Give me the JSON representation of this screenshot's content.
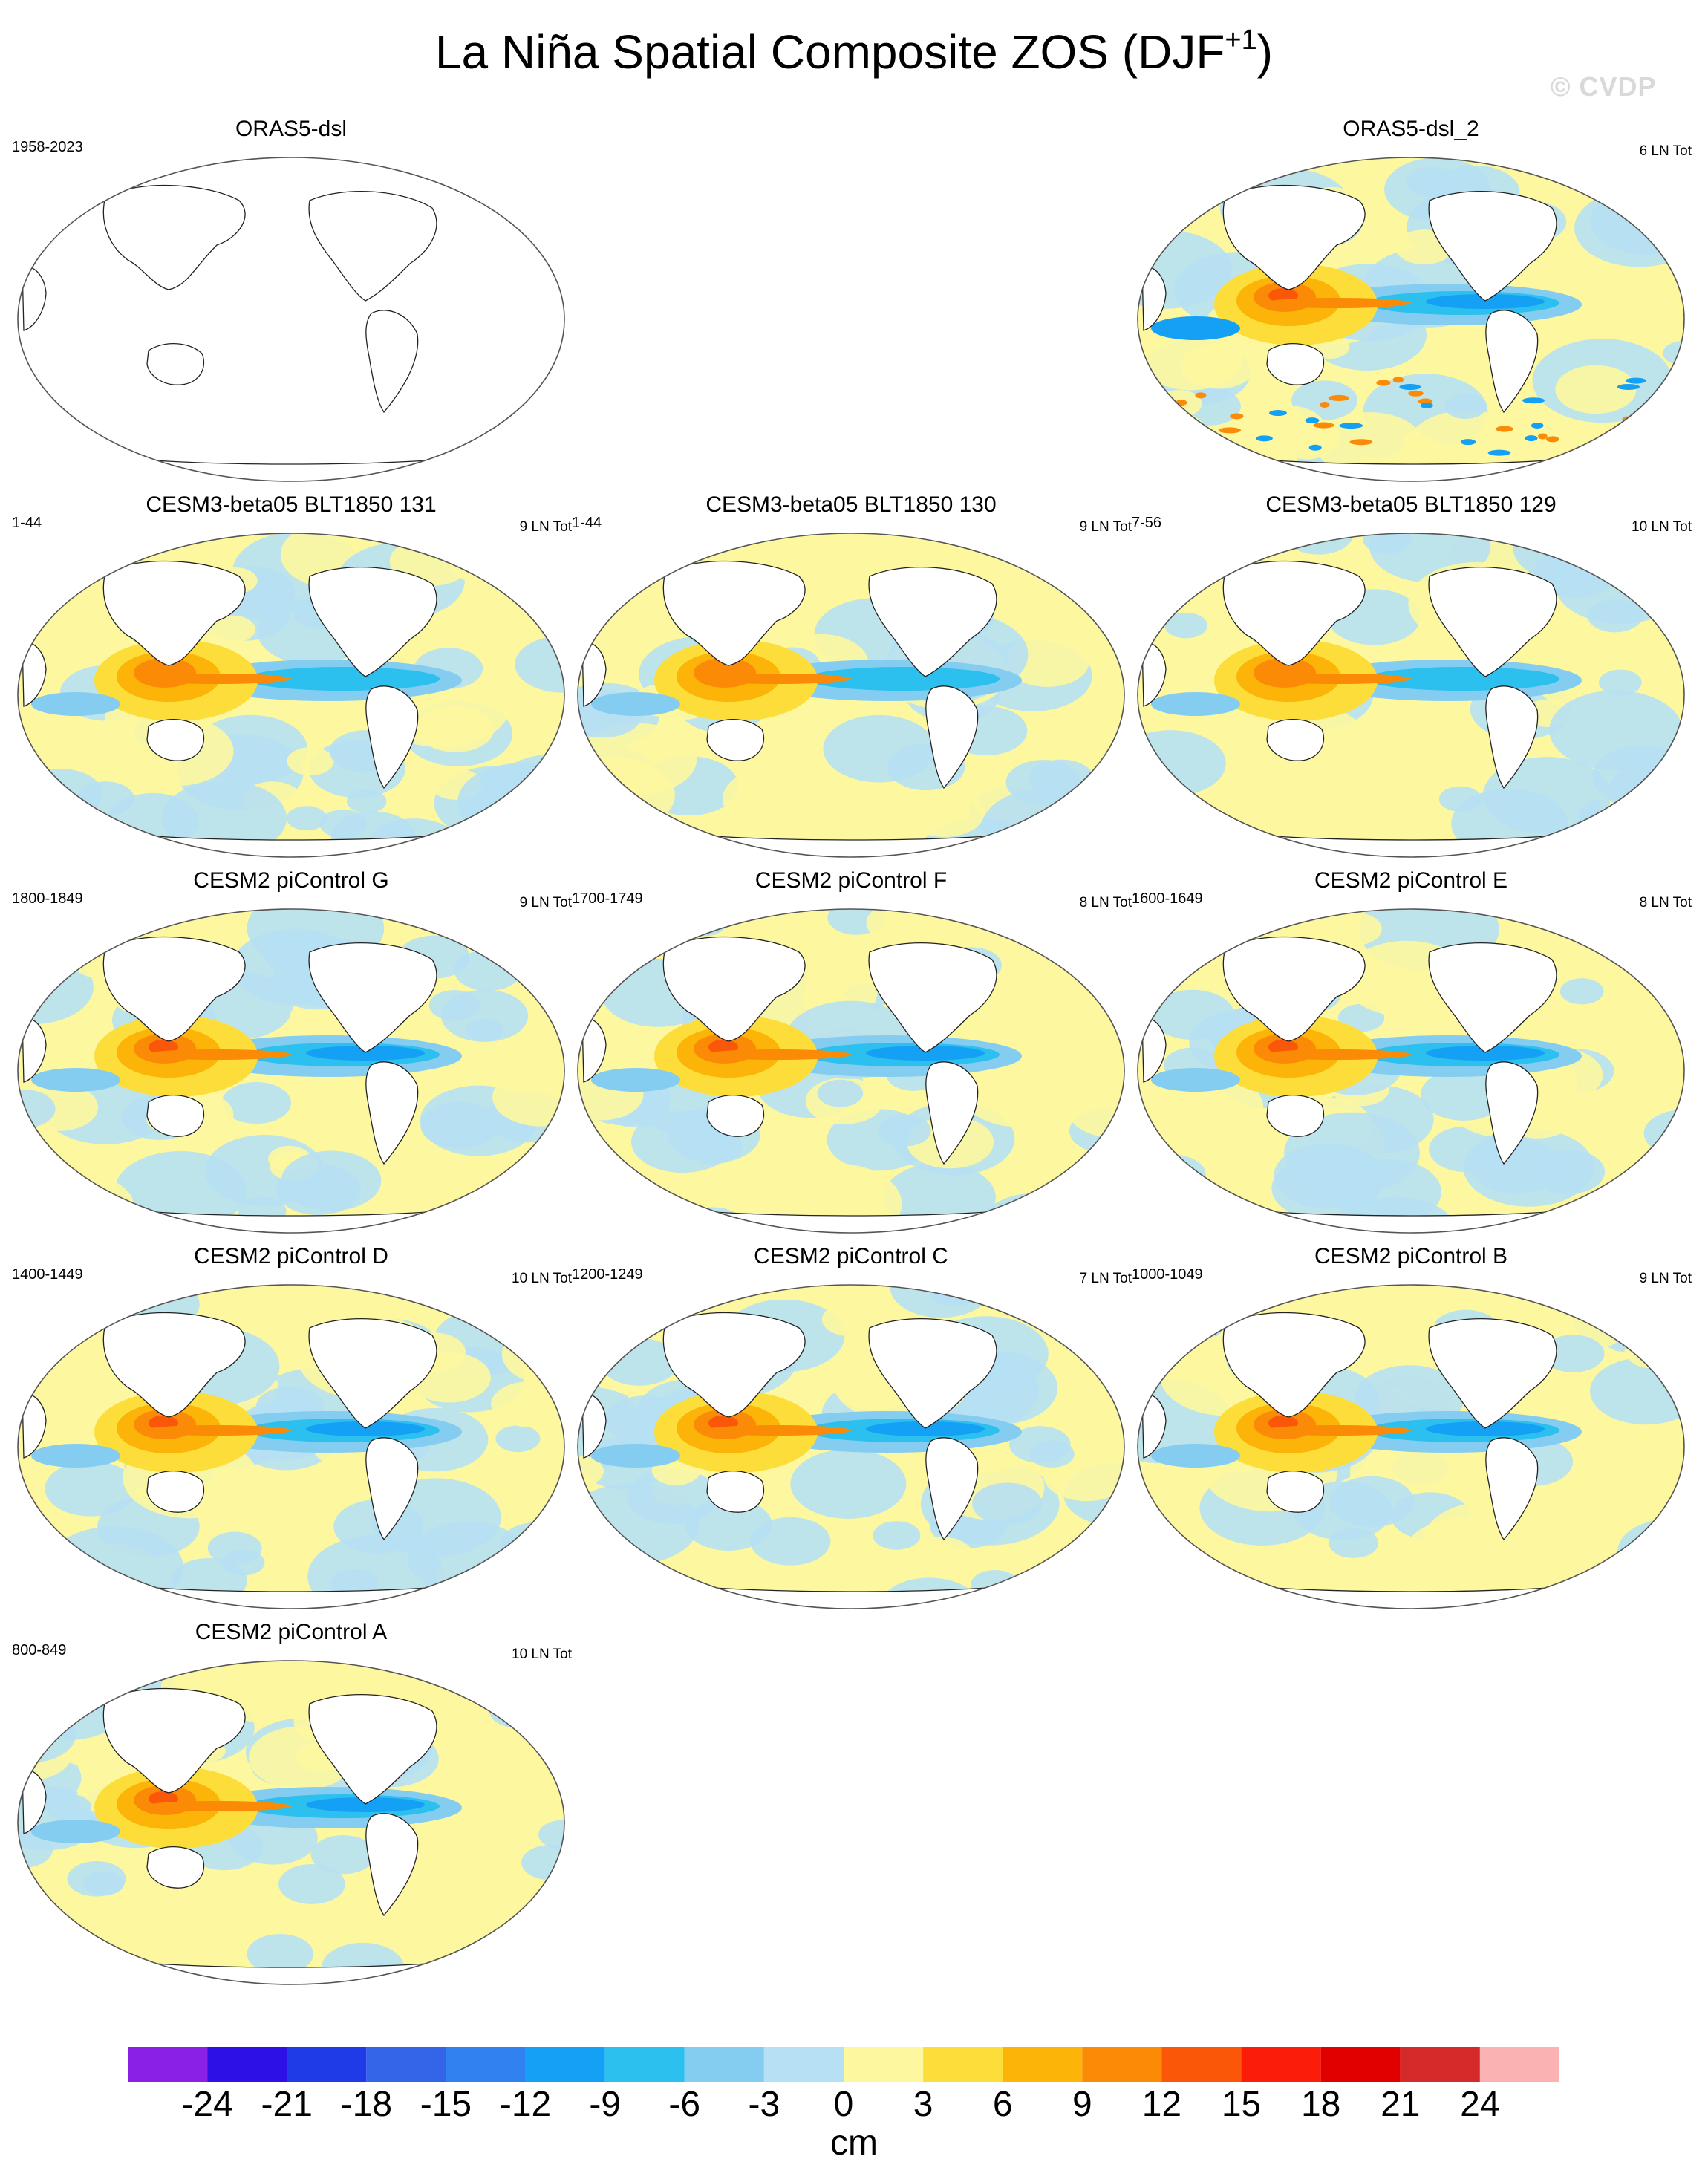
{
  "figure": {
    "title": "La Niña Spatial Composite ZOS (DJF",
    "title_sup": "+1",
    "title_close": ")",
    "watermark": "© CVDP"
  },
  "chart_data": {
    "type": "heatmap",
    "variable": "ZOS",
    "units": "cm",
    "projection": "Robinson (Pacific-centered)",
    "colorbar": {
      "levels": [
        -24,
        -21,
        -18,
        -15,
        -12,
        -9,
        -6,
        -3,
        0,
        3,
        6,
        9,
        12,
        15,
        18,
        21,
        24
      ],
      "tick_labels": [
        "-24",
        "-21",
        "-18",
        "-15",
        "-12",
        "-9",
        "-6",
        "-3",
        "0",
        "3",
        "6",
        "9",
        "12",
        "15",
        "18",
        "21",
        "24"
      ],
      "colors": [
        "#8a1fe6",
        "#2d10e6",
        "#1f3be8",
        "#3465e8",
        "#2f82f0",
        "#14a0f5",
        "#2cc0ef",
        "#85cdf0",
        "#b6e0f3",
        "#fdf7a0",
        "#fcdd3a",
        "#fbb407",
        "#fb8a07",
        "#fb5709",
        "#fb1c0a",
        "#e00000",
        "#d52a2a",
        "#fbb2b2"
      ],
      "label": "cm"
    },
    "panels": [
      {
        "id": "orasdsl",
        "title": "ORAS5-dsl",
        "years": "1958-2023",
        "count": "",
        "empty": true,
        "pattern": "blank"
      },
      {
        "id": "oras2",
        "title": "ORAS5-dsl_2",
        "years": "",
        "count": "6 LN Tot",
        "empty": false,
        "pattern": "obs"
      },
      {
        "id": "b131",
        "title": "CESM3-beta05 BLT1850 131",
        "years": "1-44",
        "count": "9 LN Tot",
        "empty": false,
        "pattern": "weak"
      },
      {
        "id": "b130",
        "title": "CESM3-beta05 BLT1850 130",
        "years": "1-44",
        "count": "9 LN Tot",
        "empty": false,
        "pattern": "weak"
      },
      {
        "id": "b129",
        "title": "CESM3-beta05 BLT1850 129",
        "years": "7-56",
        "count": "10 LN Tot",
        "empty": false,
        "pattern": "weak"
      },
      {
        "id": "g",
        "title": "CESM2 piControl G",
        "years": "1800-1849",
        "count": "9 LN Tot",
        "empty": false,
        "pattern": "strong"
      },
      {
        "id": "f",
        "title": "CESM2 piControl F",
        "years": "1700-1749",
        "count": "8 LN Tot",
        "empty": false,
        "pattern": "strong"
      },
      {
        "id": "e",
        "title": "CESM2 piControl E",
        "years": "1600-1649",
        "count": "8 LN Tot",
        "empty": false,
        "pattern": "strong"
      },
      {
        "id": "d",
        "title": "CESM2 piControl D",
        "years": "1400-1449",
        "count": "10 LN Tot",
        "empty": false,
        "pattern": "strong"
      },
      {
        "id": "c",
        "title": "CESM2 piControl C",
        "years": "1200-1249",
        "count": "7 LN Tot",
        "empty": false,
        "pattern": "strong"
      },
      {
        "id": "b",
        "title": "CESM2 piControl B",
        "years": "1000-1049",
        "count": "9 LN Tot",
        "empty": false,
        "pattern": "strong"
      },
      {
        "id": "a",
        "title": "CESM2 piControl A",
        "years": "800-849",
        "count": "10 LN Tot",
        "empty": false,
        "pattern": "strong"
      }
    ]
  }
}
